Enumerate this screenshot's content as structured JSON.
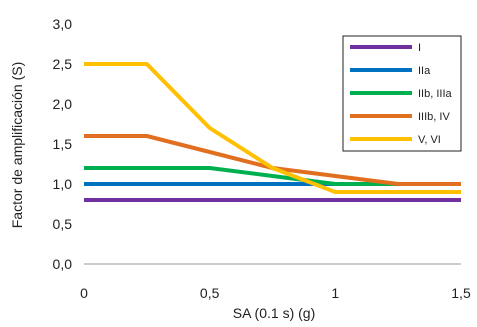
{
  "chart_data": {
    "type": "line",
    "xlabel": "SA (0.1 s) (g)",
    "ylabel": "Factor de amplificación (S)",
    "xlim": [
      0,
      1.5
    ],
    "ylim": [
      0,
      3
    ],
    "xticks": [
      0,
      0.5,
      1,
      1.5
    ],
    "xtick_labels": [
      "0",
      "0,5",
      "1",
      "1,5"
    ],
    "yticks": [
      0,
      0.5,
      1,
      1.5,
      2,
      2.5,
      3
    ],
    "ytick_labels": [
      "0,0",
      "0,5",
      "1,0",
      "1,5",
      "2,0",
      "2,5",
      "3,0"
    ],
    "grid": false,
    "legend_position": "top-right",
    "series": [
      {
        "name": "I",
        "color": "#7030a0",
        "x": [
          0,
          1.5
        ],
        "y": [
          0.8,
          0.8
        ]
      },
      {
        "name": "IIa",
        "color": "#0070c0",
        "x": [
          0,
          1.5
        ],
        "y": [
          1.0,
          1.0
        ]
      },
      {
        "name": "IIb, IIIa",
        "color": "#00b050",
        "x": [
          0,
          0.5,
          0.75,
          1.0,
          1.5
        ],
        "y": [
          1.2,
          1.2,
          1.1,
          1.0,
          1.0
        ]
      },
      {
        "name": "IIIb, IV",
        "color": "#e07020",
        "x": [
          0,
          0.25,
          0.5,
          0.75,
          1.0,
          1.25,
          1.5
        ],
        "y": [
          1.6,
          1.6,
          1.4,
          1.2,
          1.1,
          1.0,
          1.0
        ]
      },
      {
        "name": "V, VI",
        "color": "#ffc000",
        "x": [
          0,
          0.25,
          0.5,
          0.75,
          1.0,
          1.5
        ],
        "y": [
          2.5,
          2.5,
          1.7,
          1.2,
          0.9,
          0.9
        ]
      }
    ]
  }
}
